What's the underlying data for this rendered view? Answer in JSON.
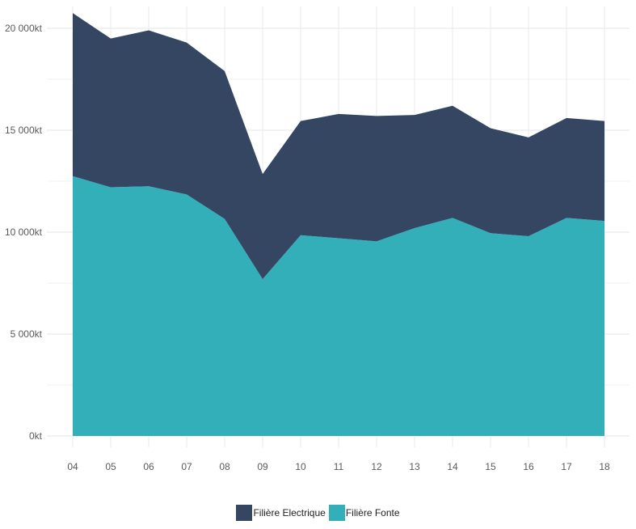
{
  "chart_data": {
    "type": "area",
    "stacked": true,
    "x": [
      "04",
      "05",
      "06",
      "07",
      "08",
      "09",
      "10",
      "11",
      "12",
      "13",
      "14",
      "15",
      "16",
      "17",
      "18"
    ],
    "series": [
      {
        "name": "Filière Fonte",
        "color": "#33afb9",
        "values": [
          12750,
          12200,
          12250,
          11850,
          10650,
          7700,
          9850,
          9700,
          9550,
          10200,
          10700,
          9950,
          9800,
          10700,
          10550
        ]
      },
      {
        "name": "Filière Electrique",
        "color": "#354663",
        "values": [
          8000,
          7300,
          7650,
          7450,
          7250,
          5150,
          5600,
          6100,
          6150,
          5550,
          5500,
          5150,
          4850,
          4900,
          4900
        ]
      }
    ],
    "xlabel": "",
    "ylabel": "",
    "ylim": [
      0,
      21000
    ],
    "y_ticks": [
      0,
      5000,
      10000,
      15000,
      20000
    ],
    "y_tick_labels": [
      "0kt",
      "5 000kt",
      "10 000kt",
      "15 000kt",
      "20 000kt"
    ],
    "grid": true,
    "legend_position": "bottom",
    "legend": [
      {
        "label": "Filière Electrique",
        "color": "#354663"
      },
      {
        "label": "Filière Fonte",
        "color": "#33afb9"
      }
    ]
  }
}
